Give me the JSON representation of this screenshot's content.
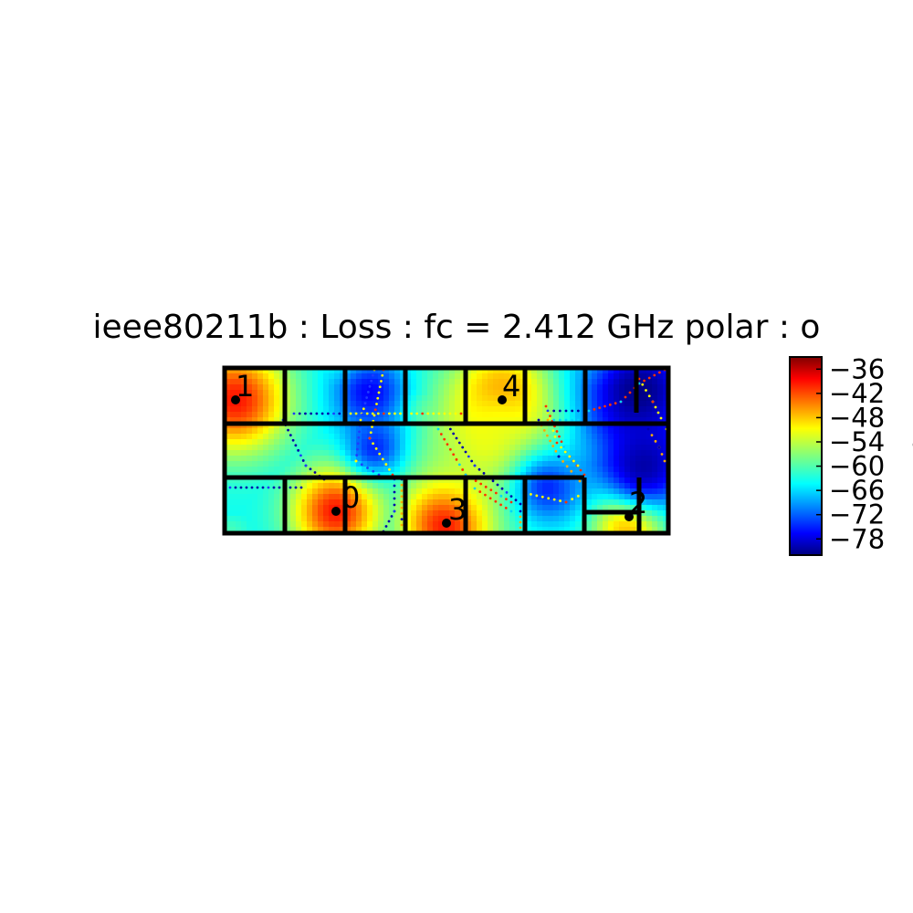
{
  "chart_data": {
    "type": "heatmap",
    "title": "ieee80211b : Loss :  fc = 2.412 GHz polar : o",
    "colorbar": {
      "label": "dB",
      "range": [
        -82,
        -33
      ],
      "ticks": [
        -36,
        -42,
        -48,
        -54,
        -60,
        -66,
        -72,
        -78
      ],
      "tick_labels": [
        "−36",
        "−42",
        "−48",
        "−54",
        "−60",
        "−66",
        "−72",
        "−78"
      ],
      "colormap": "jet"
    },
    "access_points": [
      {
        "label": "0",
        "loss_peak_db": -40
      },
      {
        "label": "1",
        "loss_peak_db": -40
      },
      {
        "label": "2",
        "loss_peak_db": -38
      },
      {
        "label": "3",
        "loss_peak_db": -38
      },
      {
        "label": "4",
        "loss_peak_db": -37
      }
    ],
    "background_loss_db": -63
  }
}
